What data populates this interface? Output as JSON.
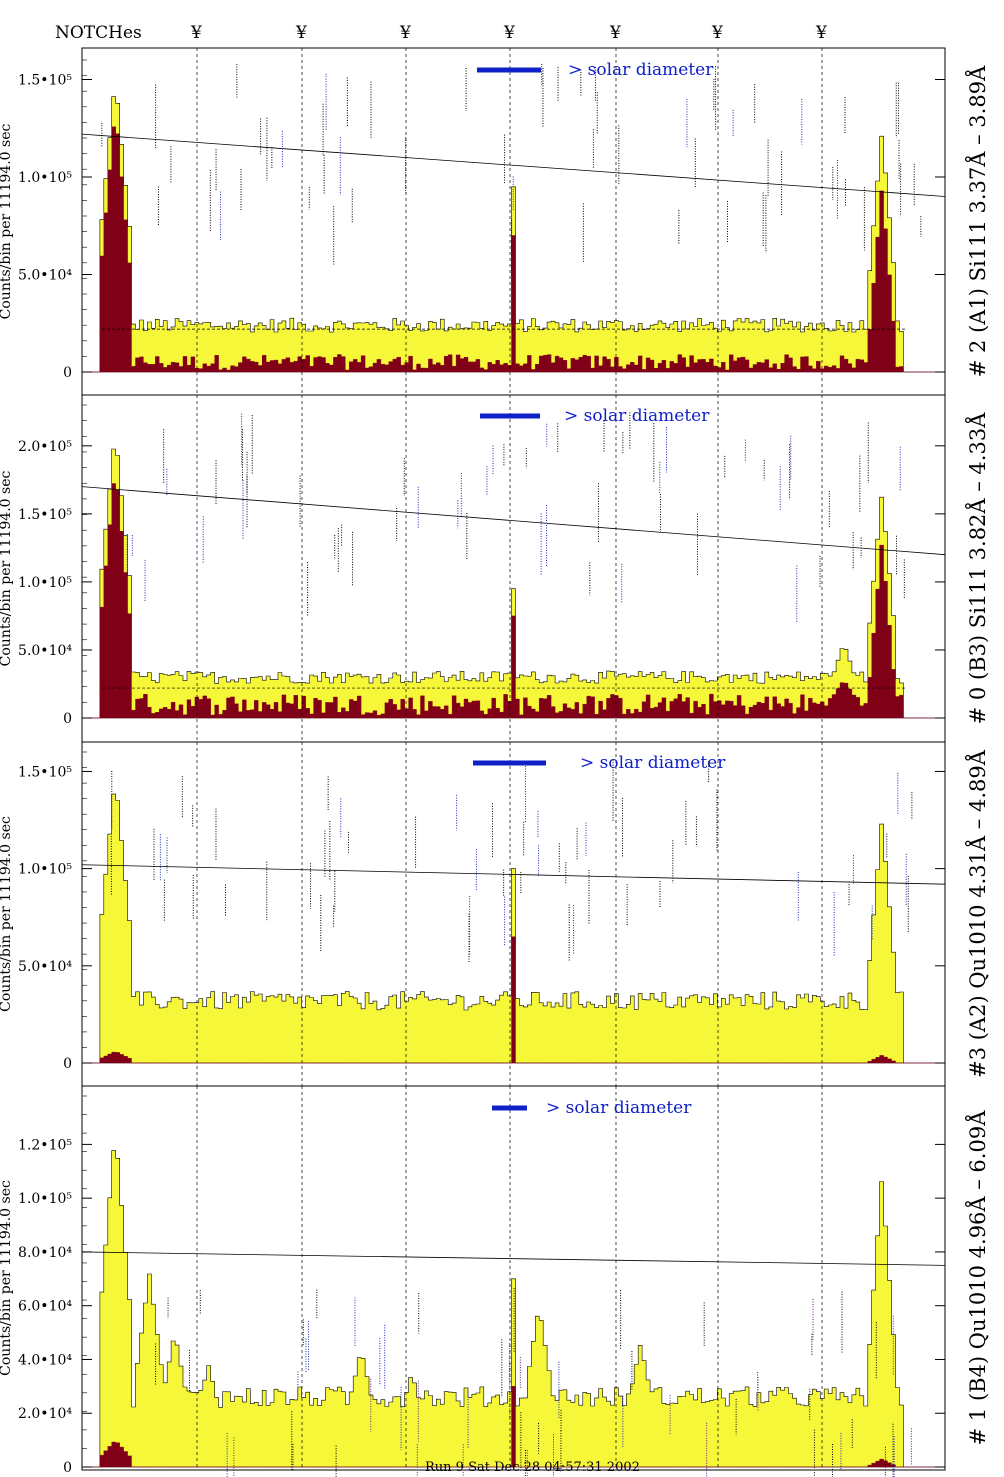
{
  "header": {
    "notches_label": "NOTCHes",
    "notch_marker": "¥"
  },
  "footer": {
    "text": "Run 9 Sat Dec 28 04:57:31 2002"
  },
  "colors": {
    "fill_total": "#f7f73a",
    "fill_solar": "#800018",
    "outline": "#000000",
    "legend": "#1020c8",
    "annot_black": "#000000",
    "annot_blue": "#1a2ab8",
    "annot_purple": "#6a1a7a"
  },
  "chart_data": [
    {
      "type": "bar",
      "title": "# 2 (A1) Si111  3.37Å – 3.89Å",
      "ylabel": "Counts/bin per  11194.0 sec",
      "ylim": [
        0,
        160000
      ],
      "yticks": [
        0,
        50000,
        100000,
        150000
      ],
      "ytick_labels": [
        "0",
        "5.0•10⁴",
        "1.0•10⁵",
        "1.5•10⁵"
      ],
      "legend": "> solar diameter",
      "baseline": 22000,
      "trend": [
        122000,
        90000
      ],
      "series": [
        {
          "name": "total",
          "level": 24000,
          "left_edge_peak": 150000,
          "right_edge_peak": 123000,
          "center_peak": 95000
        },
        {
          "name": "solar",
          "level": 5000,
          "left_edge_peak": 135000,
          "right_edge_peak": 95000,
          "center_peak": 70000
        }
      ]
    },
    {
      "type": "bar",
      "title": "# 0 (B3) Si111  3.82Å – 4.33Å",
      "ylabel": "Counts/bin per  11194.0 sec",
      "ylim": [
        0,
        230000
      ],
      "yticks": [
        0,
        50000,
        100000,
        150000,
        200000
      ],
      "ytick_labels": [
        "0",
        "5.0•10⁴",
        "1.0•10⁵",
        "1.5•10⁵",
        "2.0•10⁵"
      ],
      "legend": "> solar diameter",
      "baseline": 22000,
      "trend": [
        170000,
        120000
      ],
      "series": [
        {
          "name": "total",
          "level": 30000,
          "left_edge_peak": 210000,
          "right_edge_peak": 165000,
          "center_peak": 95000
        },
        {
          "name": "solar",
          "level": 10000,
          "left_edge_peak": 185000,
          "right_edge_peak": 130000,
          "center_peak": 75000
        }
      ]
    },
    {
      "type": "bar",
      "title": "#3 (A2) Qu1010  4.31Å – 4.89Å",
      "ylabel": "Counts/bin per  11194.0 sec",
      "ylim": [
        0,
        160000
      ],
      "yticks": [
        0,
        50000,
        100000,
        150000
      ],
      "ytick_labels": [
        "0",
        "5.0•10⁴",
        "1.0•10⁵",
        "1.5•10⁵"
      ],
      "legend": "> solar diameter",
      "baseline": 0,
      "trend": [
        102000,
        92000
      ],
      "series": [
        {
          "name": "total",
          "level": 32000,
          "left_edge_peak": 147000,
          "right_edge_peak": 125000,
          "center_peak": 100000
        },
        {
          "name": "solar",
          "level": 0,
          "left_edge_peak": 6000,
          "right_edge_peak": 4000,
          "center_peak": 65000
        }
      ]
    },
    {
      "type": "bar",
      "title": "# 1 (B4) Qu1010 4.96Å – 6.09Å",
      "ylabel": "Counts/bin per  11194.0 sec",
      "ylim": [
        0,
        138000
      ],
      "yticks": [
        0,
        20000,
        40000,
        60000,
        80000,
        100000,
        120000
      ],
      "ytick_labels": [
        "0",
        "2.0•10⁴",
        "4.0•10⁴",
        "6.0•10⁴",
        "8.0•10⁴",
        "1.0•10⁵",
        "1.2•10⁵"
      ],
      "legend": "> solar diameter",
      "baseline": 0,
      "trend": [
        80000,
        75000
      ],
      "series": [
        {
          "name": "total",
          "level": 26000,
          "left_edge_peak": 125000,
          "right_edge_peak": 108000,
          "center_peak": 70000
        },
        {
          "name": "solar",
          "level": 0,
          "left_edge_peak": 10000,
          "right_edge_peak": 3000,
          "center_peak": 30000
        }
      ]
    }
  ]
}
